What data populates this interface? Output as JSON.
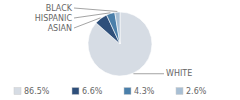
{
  "chart_data": {
    "type": "pie",
    "categories": [
      "WHITE",
      "ASIAN",
      "HISPANIC",
      "BLACK"
    ],
    "values": [
      86.5,
      6.6,
      4.3,
      2.6
    ],
    "value_labels": [
      "86.5%",
      "6.6%",
      "4.3%",
      "2.6%"
    ],
    "colors": [
      "#d6dce4",
      "#2e4f7a",
      "#4a7faa",
      "#a8bfd4"
    ],
    "legend": "bottom"
  }
}
